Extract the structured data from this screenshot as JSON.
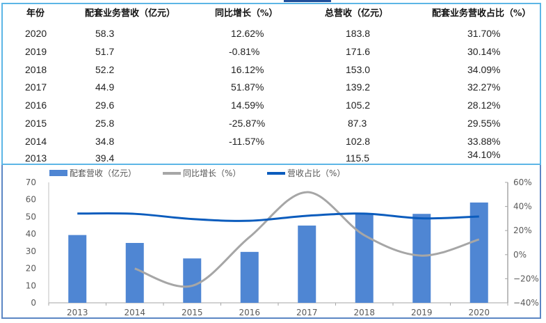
{
  "table": {
    "headers": [
      "年份",
      "配套业务营收（亿元）",
      "同比增长（%）",
      "总营收（亿元）",
      "配套业务营收占比（%）"
    ],
    "rows": [
      {
        "year": "2020",
        "supporting_revenue": "58.3",
        "yoy_growth": "12.62%",
        "total_revenue": "183.8",
        "share": "31.70%"
      },
      {
        "year": "2019",
        "supporting_revenue": "51.7",
        "yoy_growth": "-0.81%",
        "total_revenue": "171.6",
        "share": "30.14%"
      },
      {
        "year": "2018",
        "supporting_revenue": "52.2",
        "yoy_growth": "16.12%",
        "total_revenue": "153.0",
        "share": "34.09%"
      },
      {
        "year": "2017",
        "supporting_revenue": "44.9",
        "yoy_growth": "51.87%",
        "total_revenue": "139.2",
        "share": "32.27%"
      },
      {
        "year": "2016",
        "supporting_revenue": "29.6",
        "yoy_growth": "14.59%",
        "total_revenue": "105.2",
        "share": "28.12%"
      },
      {
        "year": "2015",
        "supporting_revenue": "25.8",
        "yoy_growth": "-25.87%",
        "total_revenue": "87.3",
        "share": "29.55%"
      },
      {
        "year": "2014",
        "supporting_revenue": "34.8",
        "yoy_growth": "-11.57%",
        "total_revenue": "102.8",
        "share": "33.88%"
      },
      {
        "year": "2013",
        "supporting_revenue": "39.4",
        "yoy_growth": "",
        "total_revenue": "115.5",
        "share": "34.10%"
      }
    ]
  },
  "legend": {
    "bar_label": "配套营收（亿元）",
    "growth_label": "同比增长（%）",
    "share_label": "营收占比（%）"
  },
  "colors": {
    "bar": "#4f86d3",
    "growth_line": "#a6a6a6",
    "share_line": "#0b5cbd",
    "table_border": "#5cb6e6",
    "chart_border": "#5b86c4"
  },
  "chart_data": {
    "type": "bar+line",
    "title": "",
    "categories": [
      "2013",
      "2014",
      "2015",
      "2016",
      "2017",
      "2018",
      "2019",
      "2020"
    ],
    "series": [
      {
        "name": "配套营收（亿元）",
        "type": "bar",
        "axis": "left",
        "values": [
          39.4,
          34.8,
          25.8,
          29.6,
          44.9,
          52.2,
          51.7,
          58.3
        ]
      },
      {
        "name": "同比增长（%）",
        "type": "line",
        "axis": "right",
        "values": [
          null,
          -11.57,
          -25.87,
          14.59,
          51.87,
          16.12,
          -0.81,
          12.62
        ]
      },
      {
        "name": "营收占比（%）",
        "type": "line",
        "axis": "right",
        "values": [
          34.1,
          33.88,
          29.55,
          28.12,
          32.27,
          34.09,
          30.14,
          31.7
        ]
      }
    ],
    "y_left": {
      "min": 0,
      "max": 70,
      "ticks": [
        "0",
        "10",
        "20",
        "30",
        "40",
        "50",
        "60",
        "70"
      ]
    },
    "y_right": {
      "min": -40,
      "max": 60,
      "ticks": [
        "-40%",
        "-20%",
        "0%",
        "20%",
        "40%",
        "60%"
      ]
    },
    "xlabel": "",
    "ylabel": "",
    "grid": false,
    "legend_position": "top"
  }
}
